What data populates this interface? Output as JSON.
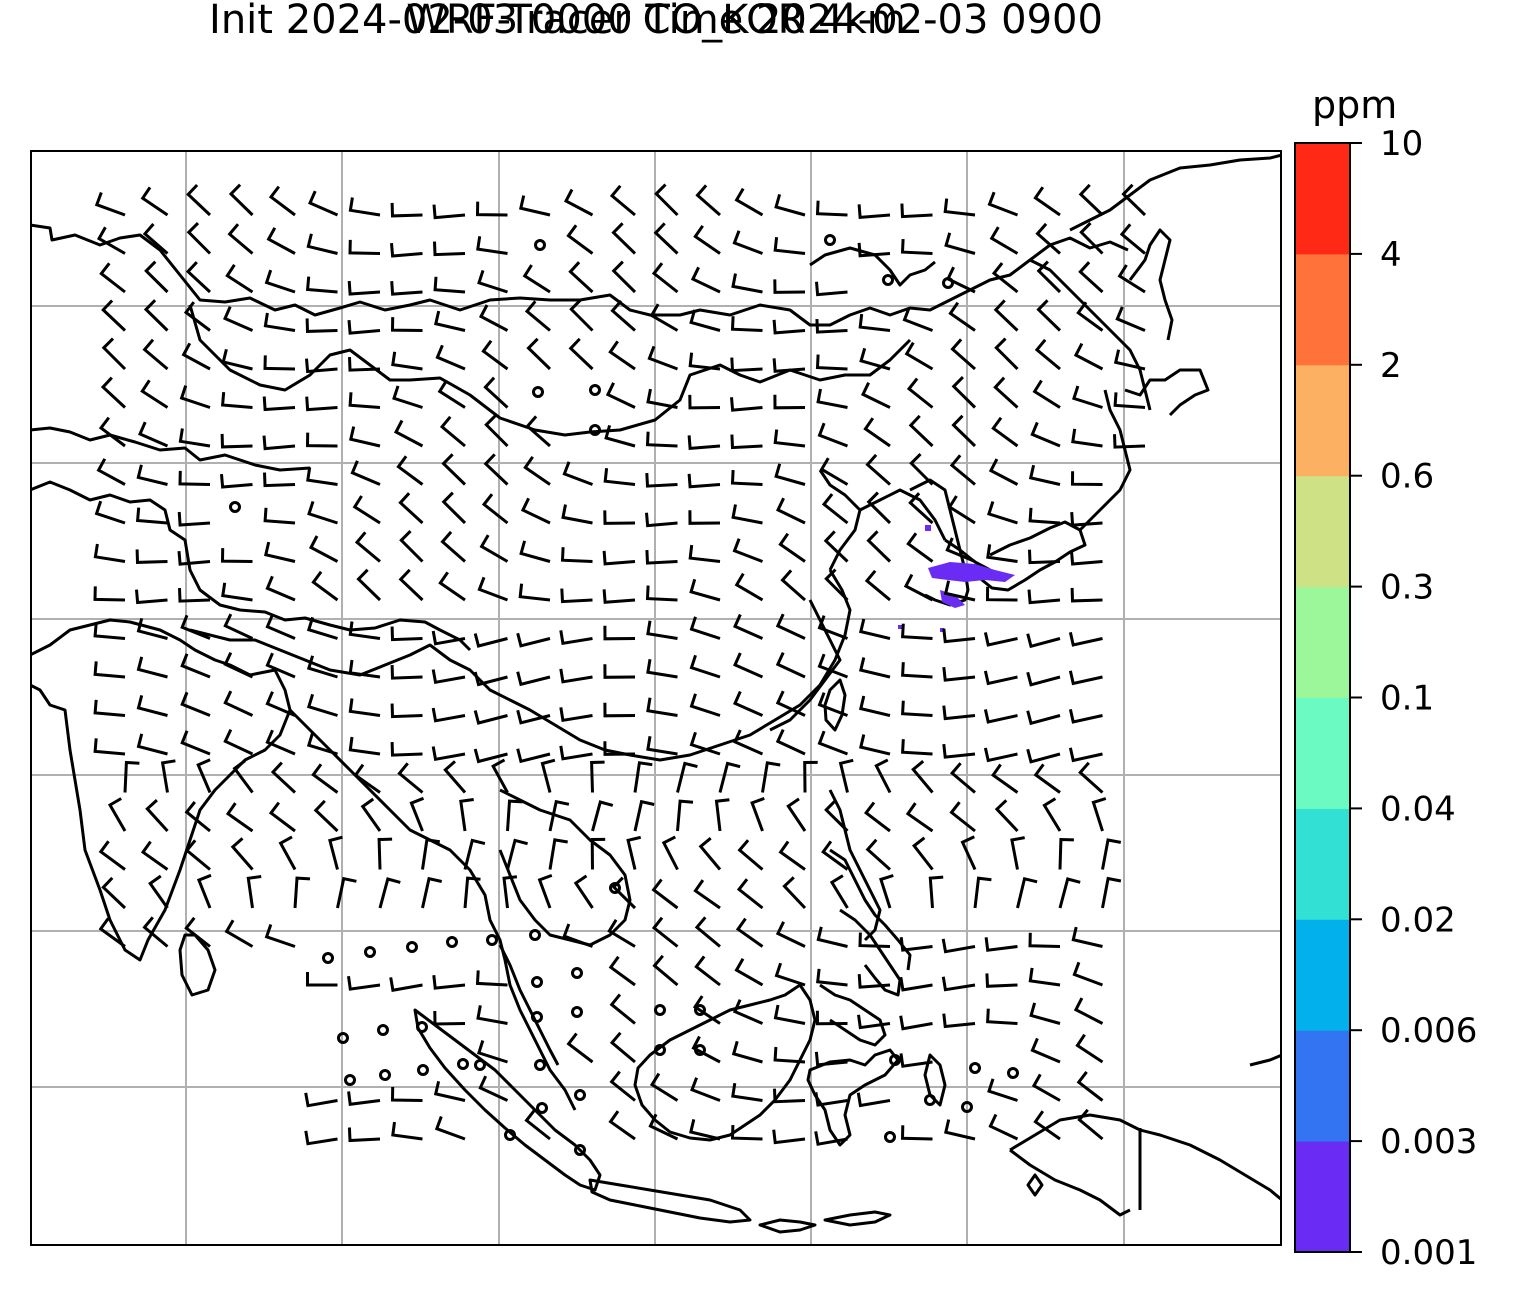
{
  "title": {
    "line1": "WRF-Tracer CO_KOR 4km",
    "line2": "Init 2024-02-03 0000 Time 2024-02-03 0900"
  },
  "colorbar": {
    "unit": "ppm",
    "levels": [
      "0.001",
      "0.003",
      "0.006",
      "0.02",
      "0.04",
      "0.1",
      "0.3",
      "0.6",
      "2",
      "4",
      "10"
    ],
    "colors": [
      "#6a2cf5",
      "#3374f3",
      "#02b1ec",
      "#33e0d4",
      "#6afac2",
      "#9bf79a",
      "#cee184",
      "#fbb161",
      "#ff733b",
      "#ff2916"
    ]
  },
  "map": {
    "gridlines": true,
    "coastline_color": "#000000",
    "grid_color": "#b0b0b0",
    "tracer_fill_color": "#6a2cf5",
    "tracer_level": "0.001–0.003 ppm"
  }
}
